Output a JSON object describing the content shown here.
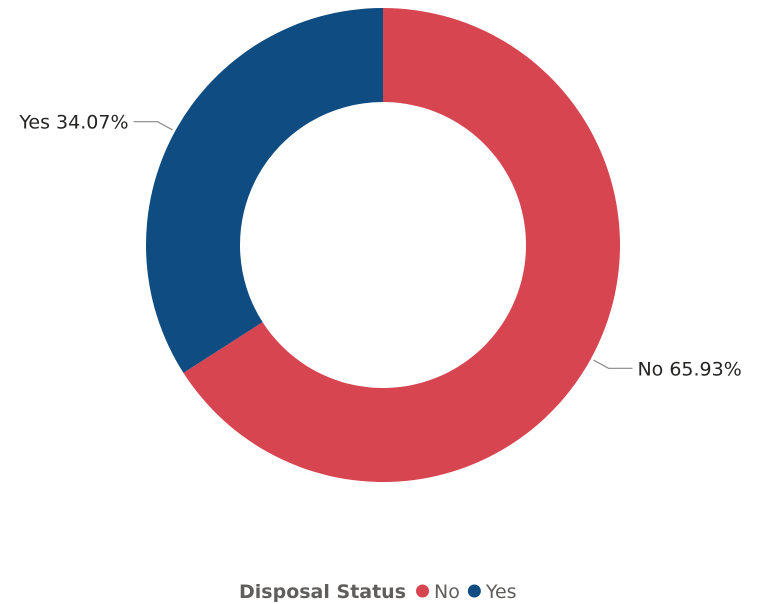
{
  "chart_data": {
    "type": "pie",
    "variant": "donut",
    "legend": {
      "title": "Disposal Status",
      "placement": "bottom-center"
    },
    "slices": [
      {
        "name": "No",
        "value": 65.93,
        "label": "No 65.93%",
        "color": "#D64550"
      },
      {
        "name": "Yes",
        "value": 34.07,
        "label": "Yes 34.07%",
        "color": "#0F4C81"
      }
    ]
  }
}
